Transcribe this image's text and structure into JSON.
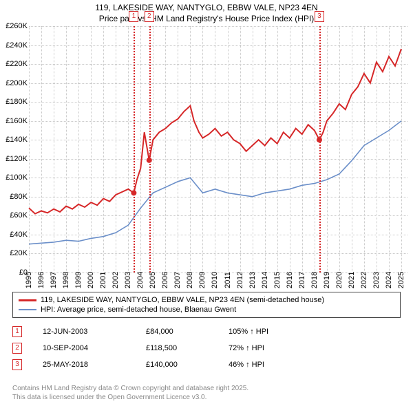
{
  "title": {
    "line1": "119, LAKESIDE WAY, NANTYGLO, EBBW VALE, NP23 4EN",
    "line2": "Price paid vs. HM Land Registry's House Price Index (HPI)"
  },
  "chart": {
    "type": "line",
    "background_color": "#ffffff",
    "grid_color": "#c8c8c8",
    "xlim": [
      1995,
      2025.5
    ],
    "ylim": [
      0,
      260000
    ],
    "ytick_step": 20000,
    "y_ticks": [
      "£0",
      "£20K",
      "£40K",
      "£60K",
      "£80K",
      "£100K",
      "£120K",
      "£140K",
      "£160K",
      "£180K",
      "£200K",
      "£220K",
      "£240K",
      "£260K"
    ],
    "x_ticks": [
      "1995",
      "1996",
      "1997",
      "1998",
      "1999",
      "2000",
      "2001",
      "2002",
      "2003",
      "2004",
      "2005",
      "2006",
      "2007",
      "2008",
      "2009",
      "2010",
      "2011",
      "2012",
      "2013",
      "2014",
      "2015",
      "2016",
      "2017",
      "2018",
      "2019",
      "2020",
      "2021",
      "2022",
      "2023",
      "2024",
      "2025"
    ],
    "label_fontsize": 11,
    "series": [
      {
        "name": "price_paid",
        "label": "119, LAKESIDE WAY, NANTYGLO, EBBW VALE, NP23 4EN (semi-detached house)",
        "color": "#d62728",
        "width": 2,
        "points": [
          [
            1995,
            68000
          ],
          [
            1995.5,
            62000
          ],
          [
            1996,
            65000
          ],
          [
            1996.5,
            63000
          ],
          [
            1997,
            67000
          ],
          [
            1997.5,
            64000
          ],
          [
            1998,
            70000
          ],
          [
            1998.5,
            67000
          ],
          [
            1999,
            72000
          ],
          [
            1999.5,
            69000
          ],
          [
            2000,
            74000
          ],
          [
            2000.5,
            71000
          ],
          [
            2001,
            78000
          ],
          [
            2001.5,
            75000
          ],
          [
            2002,
            82000
          ],
          [
            2002.5,
            85000
          ],
          [
            2003,
            88000
          ],
          [
            2003.45,
            84000
          ],
          [
            2003.7,
            98000
          ],
          [
            2004,
            110000
          ],
          [
            2004.3,
            148000
          ],
          [
            2004.69,
            118500
          ],
          [
            2005,
            140000
          ],
          [
            2005.5,
            148000
          ],
          [
            2006,
            152000
          ],
          [
            2006.5,
            158000
          ],
          [
            2007,
            162000
          ],
          [
            2007.5,
            170000
          ],
          [
            2008,
            176000
          ],
          [
            2008.3,
            160000
          ],
          [
            2008.7,
            148000
          ],
          [
            2009,
            142000
          ],
          [
            2009.5,
            146000
          ],
          [
            2010,
            152000
          ],
          [
            2010.5,
            144000
          ],
          [
            2011,
            148000
          ],
          [
            2011.5,
            140000
          ],
          [
            2012,
            136000
          ],
          [
            2012.5,
            128000
          ],
          [
            2013,
            134000
          ],
          [
            2013.5,
            140000
          ],
          [
            2014,
            134000
          ],
          [
            2014.5,
            142000
          ],
          [
            2015,
            136000
          ],
          [
            2015.5,
            148000
          ],
          [
            2016,
            142000
          ],
          [
            2016.5,
            152000
          ],
          [
            2017,
            146000
          ],
          [
            2017.5,
            156000
          ],
          [
            2018,
            150000
          ],
          [
            2018.4,
            140000
          ],
          [
            2018.7,
            148000
          ],
          [
            2019,
            160000
          ],
          [
            2019.5,
            168000
          ],
          [
            2020,
            178000
          ],
          [
            2020.5,
            172000
          ],
          [
            2021,
            188000
          ],
          [
            2021.5,
            196000
          ],
          [
            2022,
            210000
          ],
          [
            2022.5,
            200000
          ],
          [
            2023,
            222000
          ],
          [
            2023.5,
            212000
          ],
          [
            2024,
            228000
          ],
          [
            2024.5,
            218000
          ],
          [
            2025,
            236000
          ]
        ],
        "markers": [
          {
            "x": 2003.45,
            "y": 84000
          },
          {
            "x": 2004.69,
            "y": 118500
          },
          {
            "x": 2018.4,
            "y": 140000
          }
        ]
      },
      {
        "name": "hpi",
        "label": "HPI: Average price, semi-detached house, Blaenau Gwent",
        "color": "#6b8fc9",
        "width": 1.6,
        "points": [
          [
            1995,
            30000
          ],
          [
            1996,
            31000
          ],
          [
            1997,
            32000
          ],
          [
            1998,
            34000
          ],
          [
            1999,
            33000
          ],
          [
            2000,
            36000
          ],
          [
            2001,
            38000
          ],
          [
            2002,
            42000
          ],
          [
            2003,
            50000
          ],
          [
            2004,
            68000
          ],
          [
            2005,
            84000
          ],
          [
            2006,
            90000
          ],
          [
            2007,
            96000
          ],
          [
            2008,
            100000
          ],
          [
            2008.5,
            92000
          ],
          [
            2009,
            84000
          ],
          [
            2010,
            88000
          ],
          [
            2011,
            84000
          ],
          [
            2012,
            82000
          ],
          [
            2013,
            80000
          ],
          [
            2014,
            84000
          ],
          [
            2015,
            86000
          ],
          [
            2016,
            88000
          ],
          [
            2017,
            92000
          ],
          [
            2018,
            94000
          ],
          [
            2019,
            98000
          ],
          [
            2020,
            104000
          ],
          [
            2021,
            118000
          ],
          [
            2022,
            134000
          ],
          [
            2023,
            142000
          ],
          [
            2024,
            150000
          ],
          [
            2025,
            160000
          ]
        ]
      }
    ],
    "events": [
      {
        "n": "1",
        "x": 2003.45,
        "date": "12-JUN-2003",
        "price": "£84,000",
        "pct": "105% ↑ HPI",
        "color": "#d62728"
      },
      {
        "n": "2",
        "x": 2004.69,
        "date": "10-SEP-2004",
        "price": "£118,500",
        "pct": "72% ↑ HPI",
        "color": "#d62728"
      },
      {
        "n": "3",
        "x": 2018.4,
        "date": "25-MAY-2018",
        "price": "£140,000",
        "pct": "46% ↑ HPI",
        "color": "#d62728"
      }
    ]
  },
  "footer": {
    "line1": "Contains HM Land Registry data © Crown copyright and database right 2025.",
    "line2": "This data is licensed under the Open Government Licence v3.0."
  }
}
